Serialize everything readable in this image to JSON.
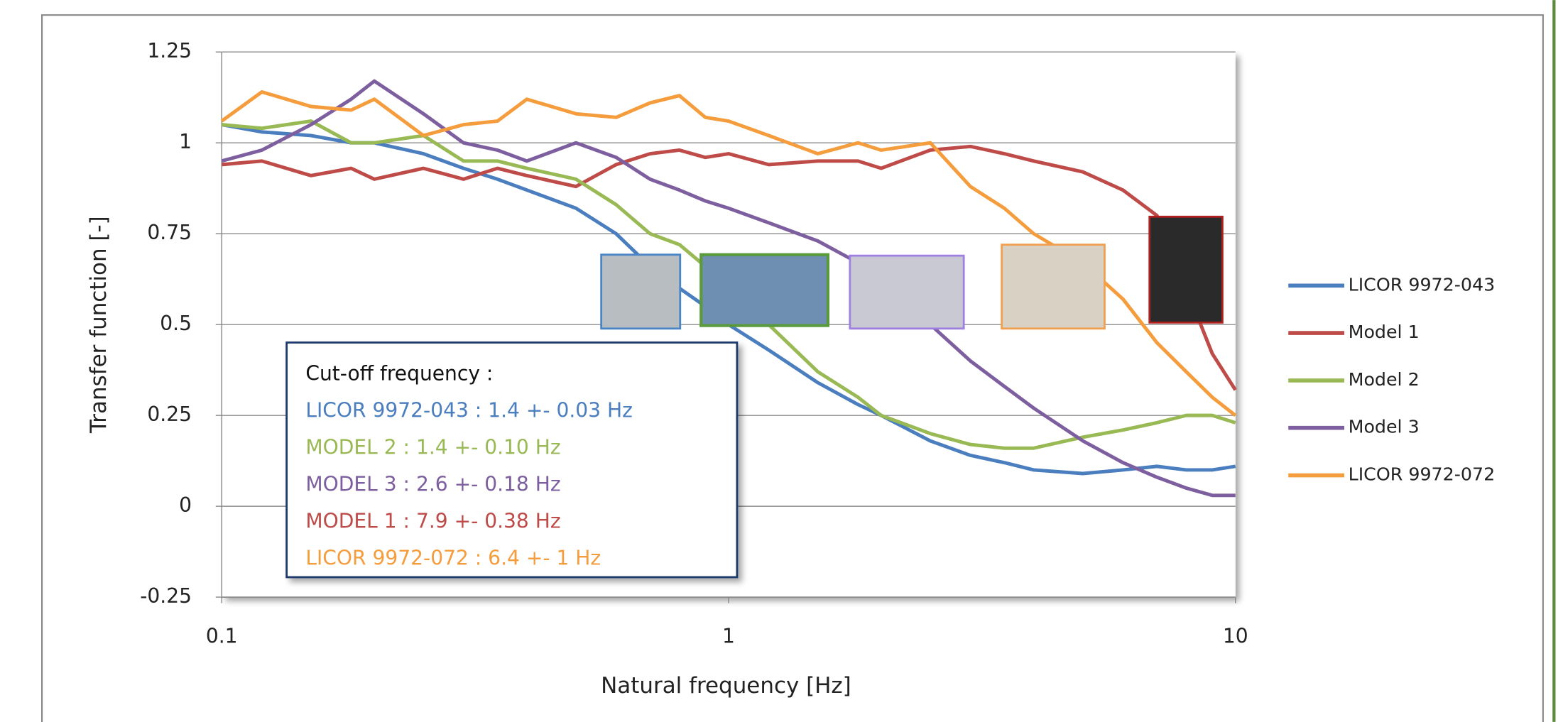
{
  "chart_data": {
    "type": "line",
    "x_label": "Natural frequency  [Hz]",
    "y_label": "Transfer  function  [-]",
    "xscale": "log",
    "xlim": [
      0.1,
      10
    ],
    "xticks": [
      0.1,
      1,
      10
    ],
    "ylim": [
      -0.25,
      1.25
    ],
    "yticks": [
      -0.25,
      0,
      0.25,
      0.5,
      0.75,
      1,
      1.25
    ],
    "grid": true,
    "legend": "right",
    "x": [
      0.1,
      0.12,
      0.15,
      0.18,
      0.2,
      0.25,
      0.3,
      0.35,
      0.4,
      0.5,
      0.6,
      0.7,
      0.8,
      0.9,
      1,
      1.2,
      1.5,
      1.8,
      2,
      2.5,
      3,
      3.5,
      4,
      5,
      6,
      7,
      8,
      9,
      10
    ],
    "series": [
      {
        "name": "LICOR 9972-043",
        "color": "#4a7ebf",
        "values": [
          1.05,
          1.03,
          1.02,
          1.0,
          1.0,
          0.97,
          0.93,
          0.9,
          0.87,
          0.82,
          0.75,
          0.66,
          0.6,
          0.55,
          0.5,
          0.43,
          0.34,
          0.28,
          0.25,
          0.18,
          0.14,
          0.12,
          0.1,
          0.09,
          0.1,
          0.11,
          0.1,
          0.1,
          0.11
        ]
      },
      {
        "name": "Model 1",
        "color": "#be4b48",
        "values": [
          0.94,
          0.95,
          0.91,
          0.93,
          0.9,
          0.93,
          0.9,
          0.93,
          0.91,
          0.88,
          0.94,
          0.97,
          0.98,
          0.96,
          0.97,
          0.94,
          0.95,
          0.95,
          0.93,
          0.98,
          0.99,
          0.97,
          0.95,
          0.92,
          0.87,
          0.8,
          0.6,
          0.42,
          0.32
        ]
      },
      {
        "name": "Model 2",
        "color": "#98b954",
        "values": [
          1.05,
          1.04,
          1.06,
          1.0,
          1.0,
          1.02,
          0.95,
          0.95,
          0.93,
          0.9,
          0.83,
          0.75,
          0.72,
          0.66,
          0.62,
          0.5,
          0.37,
          0.3,
          0.25,
          0.2,
          0.17,
          0.16,
          0.16,
          0.19,
          0.21,
          0.23,
          0.25,
          0.25,
          0.23
        ]
      },
      {
        "name": "Model 3",
        "color": "#7d5fa0",
        "values": [
          0.95,
          0.98,
          1.05,
          1.12,
          1.17,
          1.08,
          1.0,
          0.98,
          0.95,
          1.0,
          0.96,
          0.9,
          0.87,
          0.84,
          0.82,
          0.78,
          0.73,
          0.67,
          0.62,
          0.5,
          0.4,
          0.33,
          0.27,
          0.18,
          0.12,
          0.08,
          0.05,
          0.03,
          0.03
        ]
      },
      {
        "name": "LICOR 9972-072",
        "color": "#f59d3d",
        "values": [
          1.06,
          1.14,
          1.1,
          1.09,
          1.12,
          1.02,
          1.05,
          1.06,
          1.12,
          1.08,
          1.07,
          1.11,
          1.13,
          1.07,
          1.06,
          1.02,
          0.97,
          1.0,
          0.98,
          1.0,
          0.88,
          0.82,
          0.75,
          0.67,
          0.57,
          0.45,
          0.37,
          0.3,
          0.25
        ]
      }
    ],
    "annotations": [
      {
        "text": "Cut-off frequency :",
        "color": "#111111"
      },
      {
        "text": "LICOR 9972-043 : 1.4 +- 0.03 Hz",
        "color": "#4a7ebf"
      },
      {
        "text": "MODEL 2 : 1.4 +- 0.10 Hz",
        "color": "#98b954"
      },
      {
        "text": "MODEL 3 : 2.6 +- 0.18 Hz",
        "color": "#7d5fa0"
      },
      {
        "text": "MODEL 1 : 7.9 +- 0.38 Hz",
        "color": "#be4b48"
      },
      {
        "text": "LICOR 9972-072 : 6.4 +- 1 Hz",
        "color": "#f59d3d"
      }
    ]
  }
}
